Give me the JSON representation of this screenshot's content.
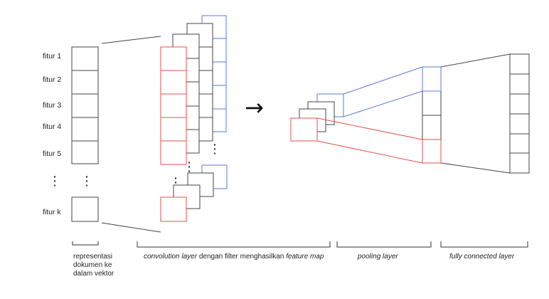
{
  "features": [
    "fitur 1",
    "fitur 2",
    "fitur 3",
    "fitur 4",
    "fitur 5",
    "fitur k"
  ],
  "ellipsis": "⋮",
  "arrow": "→",
  "captions": {
    "representation": "representasi dokumen ke dalam vektor",
    "convolution_italic_1": "convolution layer",
    "convolution_plain": " dengan filter menghasilkan ",
    "convolution_italic_2": "feature map",
    "pooling": "pooling layer",
    "fully_connected": "fully connected layer"
  },
  "colors": {
    "red": "#e05252",
    "blue": "#5a79d8",
    "black": "#333333"
  }
}
